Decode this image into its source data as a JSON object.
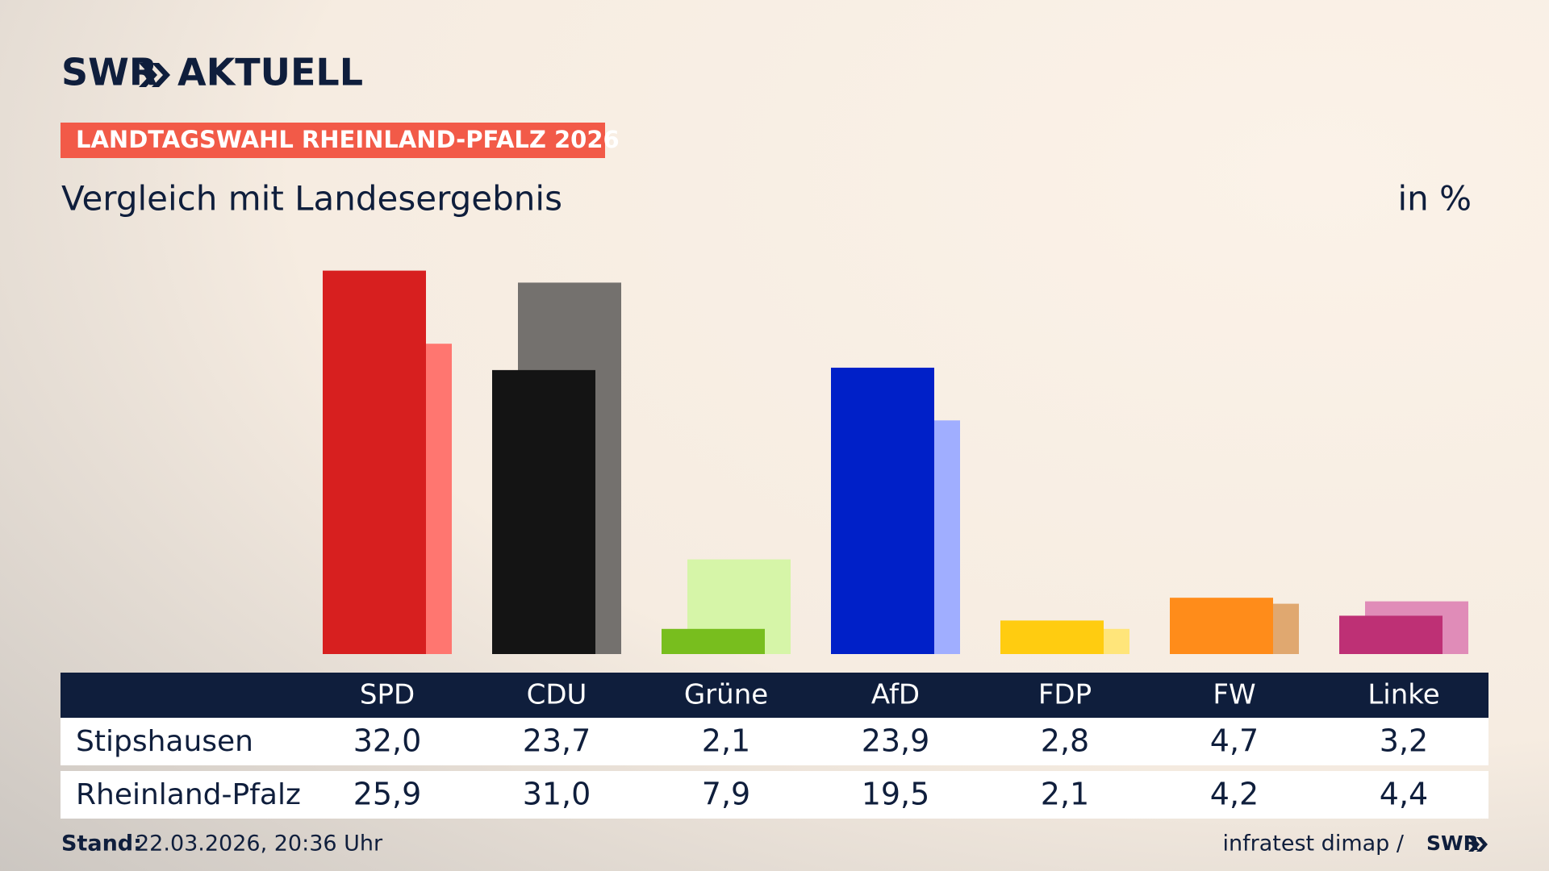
{
  "brand": {
    "logo": "SWR",
    "product": "AKTUELL"
  },
  "chart_data": {
    "type": "bar",
    "badge": "LANDTAGSWAHL RHEINLAND-PFALZ 2026",
    "title": "Vergleich mit Landesergebnis",
    "unit": "in %",
    "categories": [
      "SPD",
      "CDU",
      "Grüne",
      "AfD",
      "FDP",
      "FW",
      "Linke"
    ],
    "series": [
      {
        "name": "Stipshausen",
        "colors": [
          "#d71f1f",
          "#141414",
          "#78be1e",
          "#0020c8",
          "#ffcc10",
          "#ff8c1a",
          "#be3075"
        ],
        "values": [
          32.0,
          23.7,
          2.1,
          23.9,
          2.8,
          4.7,
          3.2
        ],
        "value_labels": [
          "32,0",
          "23,7",
          "2,1",
          "23,9",
          "2,8",
          "4,7",
          "3,2"
        ]
      },
      {
        "name": "Rheinland-Pfalz",
        "colors": [
          "#ff7670",
          "#74716e",
          "#d6f5a8",
          "#a0aeff",
          "#ffe57a",
          "#e0a870",
          "#e08cb8"
        ],
        "values": [
          25.9,
          31.0,
          7.9,
          19.5,
          2.1,
          4.2,
          4.4
        ],
        "value_labels": [
          "25,9",
          "31,0",
          "7,9",
          "19,5",
          "2,1",
          "4,2",
          "4,4"
        ]
      }
    ],
    "ylim": [
      0,
      35
    ]
  },
  "footer": {
    "stand_label": "Stand:",
    "stand": "22.03.2026, 20:36 Uhr",
    "source": "infratest dimap /",
    "source_logo": "SWR"
  }
}
